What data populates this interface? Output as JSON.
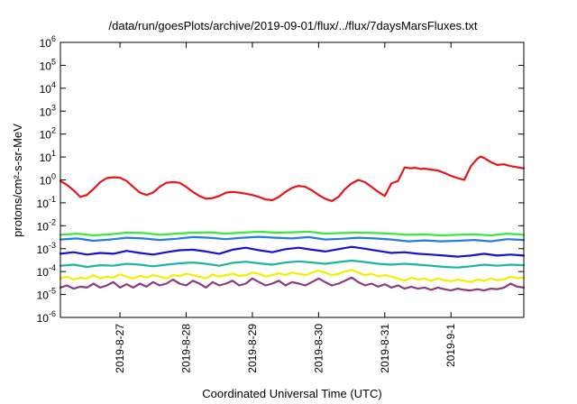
{
  "chart_data": {
    "type": "line",
    "title": "/data/run/goesPlots/archive/2019-09-01/flux/../flux/7daysMarsFluxes.txt",
    "xlabel": "Coordinated Universal Time (UTC)",
    "ylabel": "protons/cm²-s-sr-MeV",
    "y_scale": "log",
    "ylim": [
      1e-06,
      1000000.0
    ],
    "xlim": [
      0,
      7
    ],
    "y_ticks": [
      {
        "value": 1e-06,
        "base": "10",
        "exp": "-6"
      },
      {
        "value": 1e-05,
        "base": "10",
        "exp": "-5"
      },
      {
        "value": 0.0001,
        "base": "10",
        "exp": "-4"
      },
      {
        "value": 0.001,
        "base": "10",
        "exp": "-3"
      },
      {
        "value": 0.01,
        "base": "10",
        "exp": "-2"
      },
      {
        "value": 0.1,
        "base": "10",
        "exp": "-1"
      },
      {
        "value": 1,
        "base": "10",
        "exp": "0"
      },
      {
        "value": 10,
        "base": "10",
        "exp": "1"
      },
      {
        "value": 100,
        "base": "10",
        "exp": "2"
      },
      {
        "value": 1000,
        "base": "10",
        "exp": "3"
      },
      {
        "value": 10000,
        "base": "10",
        "exp": "4"
      },
      {
        "value": 100000,
        "base": "10",
        "exp": "5"
      },
      {
        "value": 1000000,
        "base": "10",
        "exp": "6"
      }
    ],
    "x_ticks": [
      {
        "value": 0.9,
        "label": "2019-8-27"
      },
      {
        "value": 1.9,
        "label": "2019-8-28"
      },
      {
        "value": 2.9,
        "label": "2019-8-29"
      },
      {
        "value": 3.9,
        "label": "2019-8-30"
      },
      {
        "value": 4.9,
        "label": "2019-8-31"
      },
      {
        "value": 5.9,
        "label": "2019-9-1"
      }
    ],
    "grid": false,
    "series": [
      {
        "color": "#e8141c",
        "x": [
          0,
          0.1,
          0.2,
          0.3,
          0.4,
          0.5,
          0.6,
          0.7,
          0.8,
          0.9,
          1.0,
          1.1,
          1.2,
          1.3,
          1.4,
          1.5,
          1.6,
          1.7,
          1.8,
          1.9,
          2.0,
          2.1,
          2.2,
          2.3,
          2.4,
          2.5,
          2.6,
          2.7,
          2.8,
          2.9,
          3.0,
          3.1,
          3.2,
          3.3,
          3.4,
          3.5,
          3.6,
          3.7,
          3.8,
          3.9,
          4.0,
          4.1,
          4.2,
          4.3,
          4.4,
          4.5,
          4.6,
          4.7,
          4.8,
          4.9,
          5.0,
          5.1,
          5.2,
          5.3,
          5.35,
          5.4,
          5.45,
          5.5,
          5.6,
          5.7,
          5.8,
          5.9,
          6.0,
          6.1,
          6.2,
          6.3,
          6.35,
          6.4,
          6.5,
          6.6,
          6.7,
          6.8,
          6.9,
          7.0
        ],
        "values": [
          0.9,
          0.6,
          0.35,
          0.18,
          0.22,
          0.4,
          0.8,
          1.2,
          1.3,
          1.25,
          0.9,
          0.5,
          0.28,
          0.22,
          0.28,
          0.5,
          0.75,
          0.8,
          0.75,
          0.5,
          0.3,
          0.2,
          0.15,
          0.16,
          0.2,
          0.28,
          0.3,
          0.28,
          0.25,
          0.22,
          0.18,
          0.14,
          0.13,
          0.18,
          0.3,
          0.45,
          0.55,
          0.5,
          0.35,
          0.22,
          0.15,
          0.12,
          0.18,
          0.4,
          0.7,
          1.0,
          0.8,
          0.5,
          0.3,
          0.2,
          0.7,
          0.9,
          3.5,
          3.2,
          3.4,
          3.2,
          3.0,
          3.1,
          2.8,
          2.6,
          2.0,
          1.5,
          1.2,
          1.0,
          4.0,
          8.5,
          10.5,
          9.0,
          6.0,
          4.5,
          4.8,
          4.0,
          3.6,
          3.2
        ]
      },
      {
        "color": "#3ce83c",
        "x": [
          0,
          0.25,
          0.5,
          0.75,
          1.0,
          1.25,
          1.5,
          1.75,
          2.0,
          2.25,
          2.5,
          2.75,
          3.0,
          3.25,
          3.5,
          3.75,
          4.0,
          4.25,
          4.5,
          4.75,
          5.0,
          5.25,
          5.5,
          5.75,
          6.0,
          6.25,
          6.5,
          6.75,
          7.0
        ],
        "values": [
          0.004,
          0.0045,
          0.0038,
          0.0042,
          0.005,
          0.0048,
          0.004,
          0.0045,
          0.005,
          0.0052,
          0.0045,
          0.005,
          0.0055,
          0.005,
          0.0052,
          0.0055,
          0.0045,
          0.0048,
          0.005,
          0.0048,
          0.0045,
          0.004,
          0.0042,
          0.0038,
          0.004,
          0.0042,
          0.0038,
          0.0045,
          0.004
        ]
      },
      {
        "color": "#2878e6",
        "x": [
          0,
          0.25,
          0.5,
          0.75,
          1.0,
          1.25,
          1.5,
          1.75,
          2.0,
          2.25,
          2.5,
          2.75,
          3.0,
          3.25,
          3.5,
          3.75,
          4.0,
          4.25,
          4.5,
          4.75,
          5.0,
          5.25,
          5.5,
          5.75,
          6.0,
          6.25,
          6.5,
          6.75,
          7.0
        ],
        "values": [
          0.0025,
          0.0028,
          0.0022,
          0.0025,
          0.003,
          0.0028,
          0.0024,
          0.0027,
          0.0032,
          0.003,
          0.0026,
          0.003,
          0.0033,
          0.003,
          0.0028,
          0.0032,
          0.0025,
          0.0027,
          0.003,
          0.0028,
          0.0025,
          0.0021,
          0.0023,
          0.0021,
          0.0022,
          0.0024,
          0.0021,
          0.0026,
          0.0024
        ]
      },
      {
        "color": "#1414d2",
        "x": [
          0,
          0.2,
          0.4,
          0.6,
          0.8,
          1.0,
          1.2,
          1.4,
          1.6,
          1.8,
          2.0,
          2.2,
          2.4,
          2.6,
          2.8,
          3.0,
          3.2,
          3.4,
          3.6,
          3.8,
          4.0,
          4.2,
          4.4,
          4.6,
          4.8,
          5.0,
          5.2,
          5.4,
          5.6,
          5.8,
          6.0,
          6.2,
          6.4,
          6.6,
          6.8,
          7.0
        ],
        "values": [
          0.0006,
          0.0007,
          0.00055,
          0.00065,
          0.0006,
          0.0008,
          0.00065,
          0.00055,
          0.0007,
          0.00085,
          0.0009,
          0.00075,
          0.0006,
          0.0009,
          0.0011,
          0.00085,
          0.0007,
          0.00095,
          0.0011,
          0.0009,
          0.00075,
          0.00095,
          0.0012,
          0.001,
          0.0008,
          0.00065,
          0.0007,
          0.0006,
          0.00055,
          0.0005,
          0.00045,
          0.0005,
          0.0006,
          0.0005,
          0.00055,
          0.0005
        ]
      },
      {
        "color": "#1eb4a0",
        "x": [
          0,
          0.2,
          0.4,
          0.6,
          0.8,
          1.0,
          1.2,
          1.4,
          1.6,
          1.8,
          2.0,
          2.2,
          2.4,
          2.6,
          2.8,
          3.0,
          3.2,
          3.4,
          3.6,
          3.8,
          4.0,
          4.2,
          4.4,
          4.6,
          4.8,
          5.0,
          5.2,
          5.4,
          5.6,
          5.8,
          6.0,
          6.2,
          6.4,
          6.6,
          6.8,
          7.0
        ],
        "values": [
          0.00018,
          0.0002,
          0.00016,
          0.00019,
          0.00018,
          0.00022,
          0.0002,
          0.00017,
          0.0002,
          0.00023,
          0.00025,
          0.00022,
          0.00018,
          0.00024,
          0.00027,
          0.00023,
          0.0002,
          0.00025,
          0.00028,
          0.00025,
          0.00022,
          0.00026,
          0.0003,
          0.00026,
          0.00022,
          0.0002,
          0.00022,
          0.0002,
          0.00018,
          0.00016,
          0.00015,
          0.00017,
          0.0002,
          0.00018,
          0.0002,
          0.00019
        ]
      },
      {
        "color": "#f0f000",
        "x": [
          0,
          0.1,
          0.2,
          0.3,
          0.4,
          0.5,
          0.6,
          0.7,
          0.8,
          0.9,
          1.0,
          1.1,
          1.2,
          1.3,
          1.4,
          1.5,
          1.6,
          1.7,
          1.8,
          1.9,
          2.0,
          2.1,
          2.2,
          2.3,
          2.4,
          2.5,
          2.6,
          2.7,
          2.8,
          2.9,
          3.0,
          3.1,
          3.2,
          3.3,
          3.4,
          3.5,
          3.6,
          3.7,
          3.8,
          3.9,
          4.0,
          4.1,
          4.2,
          4.3,
          4.4,
          4.5,
          4.6,
          4.7,
          4.8,
          4.9,
          5.0,
          5.1,
          5.2,
          5.3,
          5.4,
          5.5,
          5.6,
          5.7,
          5.8,
          5.9,
          6.0,
          6.1,
          6.2,
          6.3,
          6.4,
          6.5,
          6.6,
          6.7,
          6.8,
          6.9,
          7.0
        ],
        "values": [
          5e-05,
          6e-05,
          4.5e-05,
          5.5e-05,
          5e-05,
          7e-05,
          5e-05,
          6e-05,
          5.5e-05,
          7.5e-05,
          6e-05,
          5e-05,
          6.5e-05,
          5.5e-05,
          7e-05,
          6e-05,
          5e-05,
          7e-05,
          6.5e-05,
          8e-05,
          7e-05,
          6e-05,
          5e-05,
          7.5e-05,
          6e-05,
          7e-05,
          8e-05,
          6.5e-05,
          7e-05,
          9e-05,
          8e-05,
          6e-05,
          7e-05,
          8.5e-05,
          7e-05,
          9e-05,
          8e-05,
          7e-05,
          9e-05,
          0.00011,
          9e-05,
          7e-05,
          8e-05,
          0.0001,
          0.00012,
          9e-05,
          7e-05,
          8e-05,
          6e-05,
          7e-05,
          6e-05,
          5e-05,
          4e-05,
          5.5e-05,
          4.5e-05,
          5e-05,
          4e-05,
          5e-05,
          4.2e-05,
          3.8e-05,
          4.5e-05,
          4e-05,
          3.5e-05,
          4.5e-05,
          4e-05,
          5e-05,
          4.2e-05,
          4.6e-05,
          6e-05,
          5.2e-05,
          5.5e-05
        ]
      },
      {
        "color": "#8c3c78",
        "x": [
          0,
          0.1,
          0.2,
          0.3,
          0.4,
          0.5,
          0.6,
          0.7,
          0.8,
          0.9,
          1.0,
          1.1,
          1.2,
          1.3,
          1.4,
          1.5,
          1.6,
          1.7,
          1.8,
          1.9,
          2.0,
          2.1,
          2.2,
          2.3,
          2.4,
          2.5,
          2.6,
          2.7,
          2.8,
          2.9,
          3.0,
          3.1,
          3.2,
          3.3,
          3.4,
          3.5,
          3.6,
          3.7,
          3.8,
          3.9,
          4.0,
          4.1,
          4.2,
          4.3,
          4.4,
          4.5,
          4.6,
          4.7,
          4.8,
          4.9,
          5.0,
          5.1,
          5.2,
          5.3,
          5.4,
          5.5,
          5.6,
          5.7,
          5.8,
          5.9,
          6.0,
          6.1,
          6.2,
          6.3,
          6.4,
          6.5,
          6.6,
          6.7,
          6.8,
          6.9,
          7.0
        ],
        "values": [
          2e-05,
          2.5e-05,
          1.8e-05,
          2.2e-05,
          2e-05,
          3e-05,
          2e-05,
          2.5e-05,
          3.5e-05,
          2e-05,
          2.8e-05,
          2e-05,
          3e-05,
          2.2e-05,
          3.5e-05,
          2.5e-05,
          3e-05,
          4.5e-05,
          3e-05,
          2.5e-05,
          4e-05,
          3e-05,
          2e-05,
          3.5e-05,
          2.5e-05,
          3e-05,
          4e-05,
          2.5e-05,
          3e-05,
          5e-05,
          3.5e-05,
          2.5e-05,
          3e-05,
          4e-05,
          2.5e-05,
          3.5e-05,
          3e-05,
          2.5e-05,
          3.5e-05,
          5e-05,
          3.5e-05,
          2.5e-05,
          3e-05,
          4e-05,
          5.5e-05,
          3.5e-05,
          2.5e-05,
          3e-05,
          2.2e-05,
          2.8e-05,
          2e-05,
          2.5e-05,
          1.8e-05,
          2.2e-05,
          1.8e-05,
          2e-05,
          1.6e-05,
          2e-05,
          1.7e-05,
          1.5e-05,
          1.8e-05,
          1.6e-05,
          1.5e-05,
          1.7e-05,
          1.5e-05,
          1.8e-05,
          1.7e-05,
          2e-05,
          3e-05,
          2.2e-05,
          2e-05
        ]
      }
    ]
  }
}
